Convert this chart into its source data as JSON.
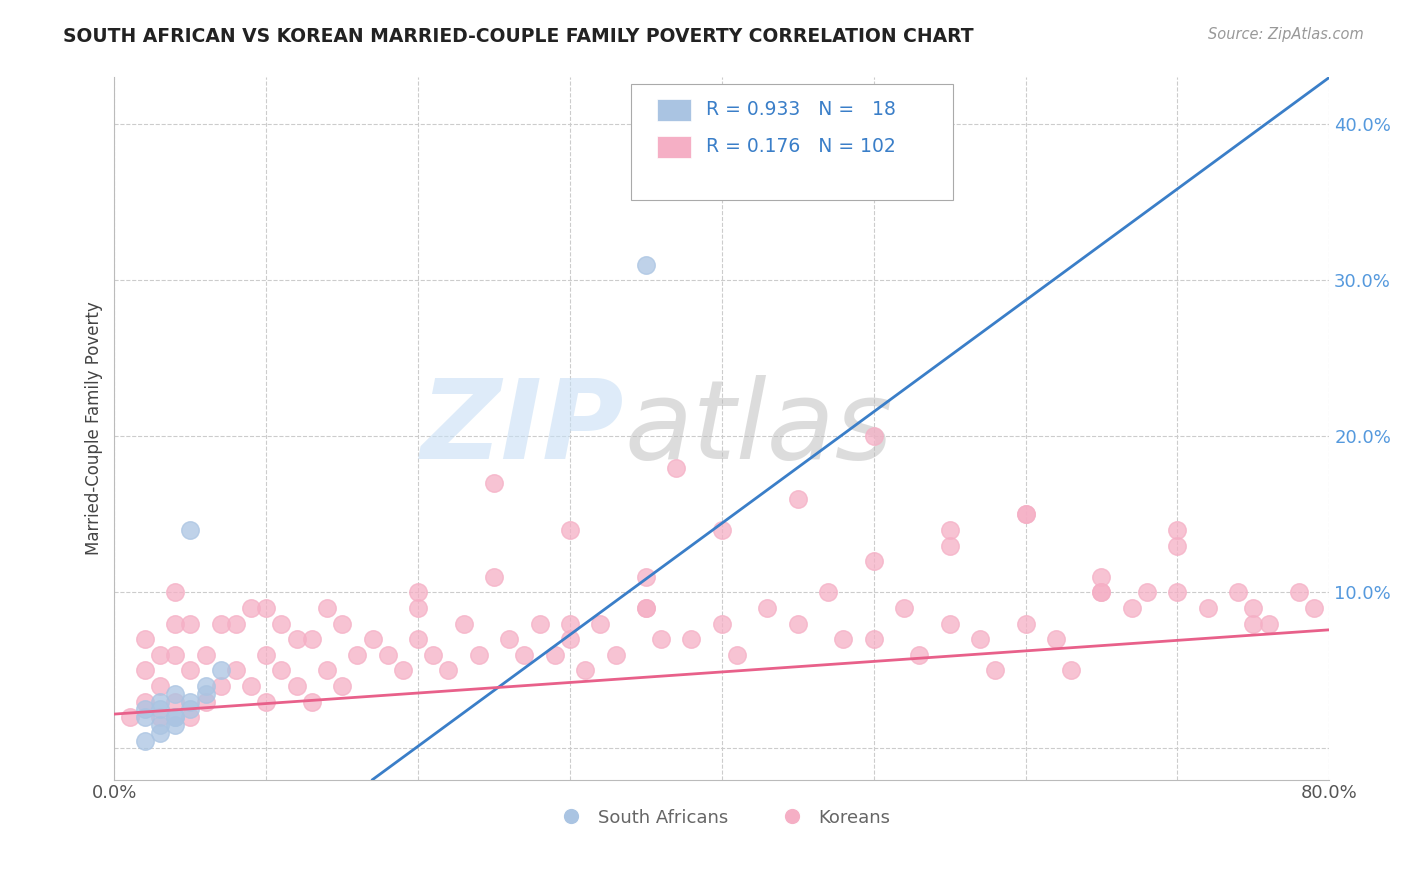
{
  "title": "SOUTH AFRICAN VS KOREAN MARRIED-COUPLE FAMILY POVERTY CORRELATION CHART",
  "source": "Source: ZipAtlas.com",
  "ylabel": "Married-Couple Family Poverty",
  "xmin": 0.0,
  "xmax": 0.8,
  "ymin": -0.02,
  "ymax": 0.43,
  "yticks": [
    0.0,
    0.1,
    0.2,
    0.3,
    0.4
  ],
  "ytick_labels": [
    "",
    "10.0%",
    "20.0%",
    "30.0%",
    "40.0%"
  ],
  "xticks": [
    0.0,
    0.1,
    0.2,
    0.3,
    0.4,
    0.5,
    0.6,
    0.7,
    0.8
  ],
  "xtick_labels": [
    "0.0%",
    "",
    "",
    "",
    "",
    "",
    "",
    "",
    "80.0%"
  ],
  "r_sa": 0.933,
  "n_sa": 18,
  "r_kr": 0.176,
  "n_kr": 102,
  "sa_color": "#aac4e2",
  "kr_color": "#f5afc5",
  "sa_line_color": "#3a7ec8",
  "kr_line_color": "#e8608a",
  "legend_south_africans": "South Africans",
  "legend_koreans": "Koreans",
  "sa_line_x0": 0.17,
  "sa_line_y0": -0.02,
  "sa_line_x1": 0.8,
  "sa_line_y1": 0.43,
  "kr_line_x0": 0.0,
  "kr_line_y0": 0.022,
  "kr_line_x1": 0.8,
  "kr_line_y1": 0.076,
  "sa_scatter_x": [
    0.02,
    0.03,
    0.04,
    0.03,
    0.04,
    0.05,
    0.05,
    0.06,
    0.06,
    0.07,
    0.02,
    0.03,
    0.04,
    0.02,
    0.03,
    0.04,
    0.35,
    0.05
  ],
  "sa_scatter_y": [
    0.025,
    0.03,
    0.02,
    0.015,
    0.035,
    0.03,
    0.025,
    0.04,
    0.035,
    0.05,
    0.005,
    0.01,
    0.015,
    0.02,
    0.025,
    0.02,
    0.31,
    0.14
  ],
  "kr_scatter_x": [
    0.01,
    0.02,
    0.02,
    0.02,
    0.03,
    0.03,
    0.03,
    0.04,
    0.04,
    0.04,
    0.04,
    0.05,
    0.05,
    0.05,
    0.06,
    0.06,
    0.07,
    0.07,
    0.08,
    0.08,
    0.09,
    0.09,
    0.1,
    0.1,
    0.1,
    0.11,
    0.11,
    0.12,
    0.12,
    0.13,
    0.13,
    0.14,
    0.14,
    0.15,
    0.15,
    0.16,
    0.17,
    0.18,
    0.19,
    0.2,
    0.2,
    0.21,
    0.22,
    0.23,
    0.24,
    0.25,
    0.26,
    0.27,
    0.28,
    0.29,
    0.3,
    0.31,
    0.32,
    0.33,
    0.35,
    0.36,
    0.37,
    0.38,
    0.4,
    0.41,
    0.43,
    0.45,
    0.47,
    0.48,
    0.5,
    0.52,
    0.53,
    0.55,
    0.57,
    0.58,
    0.6,
    0.62,
    0.63,
    0.65,
    0.67,
    0.68,
    0.7,
    0.72,
    0.74,
    0.75,
    0.76,
    0.78,
    0.79,
    0.3,
    0.35,
    0.4,
    0.45,
    0.5,
    0.55,
    0.6,
    0.65,
    0.7,
    0.5,
    0.55,
    0.6,
    0.65,
    0.7,
    0.75,
    0.2,
    0.25,
    0.3,
    0.35
  ],
  "kr_scatter_y": [
    0.02,
    0.03,
    0.05,
    0.07,
    0.02,
    0.04,
    0.06,
    0.03,
    0.06,
    0.08,
    0.1,
    0.02,
    0.05,
    0.08,
    0.03,
    0.06,
    0.04,
    0.08,
    0.05,
    0.08,
    0.04,
    0.09,
    0.03,
    0.06,
    0.09,
    0.05,
    0.08,
    0.04,
    0.07,
    0.03,
    0.07,
    0.05,
    0.09,
    0.04,
    0.08,
    0.06,
    0.07,
    0.06,
    0.05,
    0.07,
    0.09,
    0.06,
    0.05,
    0.08,
    0.06,
    0.17,
    0.07,
    0.06,
    0.08,
    0.06,
    0.07,
    0.05,
    0.08,
    0.06,
    0.09,
    0.07,
    0.18,
    0.07,
    0.08,
    0.06,
    0.09,
    0.08,
    0.1,
    0.07,
    0.07,
    0.09,
    0.06,
    0.08,
    0.07,
    0.05,
    0.08,
    0.07,
    0.05,
    0.1,
    0.09,
    0.1,
    0.1,
    0.09,
    0.1,
    0.09,
    0.08,
    0.1,
    0.09,
    0.14,
    0.11,
    0.14,
    0.16,
    0.12,
    0.13,
    0.15,
    0.1,
    0.13,
    0.2,
    0.14,
    0.15,
    0.11,
    0.14,
    0.08,
    0.1,
    0.11,
    0.08,
    0.09
  ]
}
